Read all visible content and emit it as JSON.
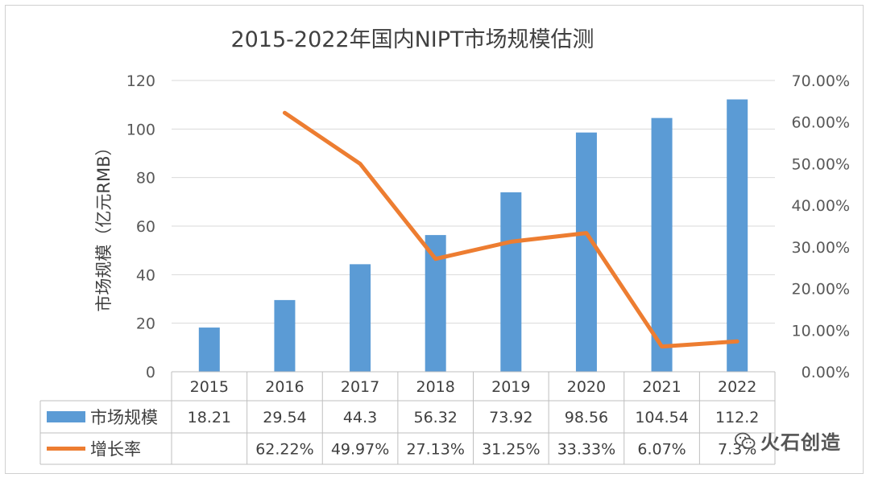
{
  "chart_data": {
    "type": "bar+line",
    "title": "2015-2022年国内NIPT市场规模估测",
    "categories": [
      "2015",
      "2016",
      "2017",
      "2018",
      "2019",
      "2020",
      "2021",
      "2022"
    ],
    "series": [
      {
        "name": "市场规模",
        "type": "bar",
        "axis": "left",
        "color": "#5b9bd5",
        "values": [
          18.21,
          29.54,
          44.3,
          56.32,
          73.92,
          98.56,
          104.54,
          112.2
        ],
        "table_labels": [
          "18.21",
          "29.54",
          "44.3",
          "56.32",
          "73.92",
          "98.56",
          "104.54",
          "112.2"
        ]
      },
      {
        "name": "增长率",
        "type": "line",
        "axis": "right",
        "color": "#ed7d31",
        "values": [
          null,
          62.22,
          49.97,
          27.13,
          31.25,
          33.33,
          6.07,
          7.3
        ],
        "table_labels": [
          "",
          "62.22%",
          "49.97%",
          "27.13%",
          "31.25%",
          "33.33%",
          "6.07%",
          "7.3%"
        ]
      }
    ],
    "ylabel": "市场规模（亿元RMB）",
    "ylim": [
      0,
      120
    ],
    "y_ticks": [
      "0",
      "20",
      "40",
      "60",
      "80",
      "100",
      "120"
    ],
    "y2lim": [
      0,
      70
    ],
    "y2_ticks": [
      "0.00%",
      "10.00%",
      "20.00%",
      "30.00%",
      "40.00%",
      "50.00%",
      "60.00%",
      "70.00%"
    ],
    "grid": true,
    "legend": "data-table"
  },
  "watermark": {
    "text": "火石创造",
    "icon": "wechat-icon"
  }
}
